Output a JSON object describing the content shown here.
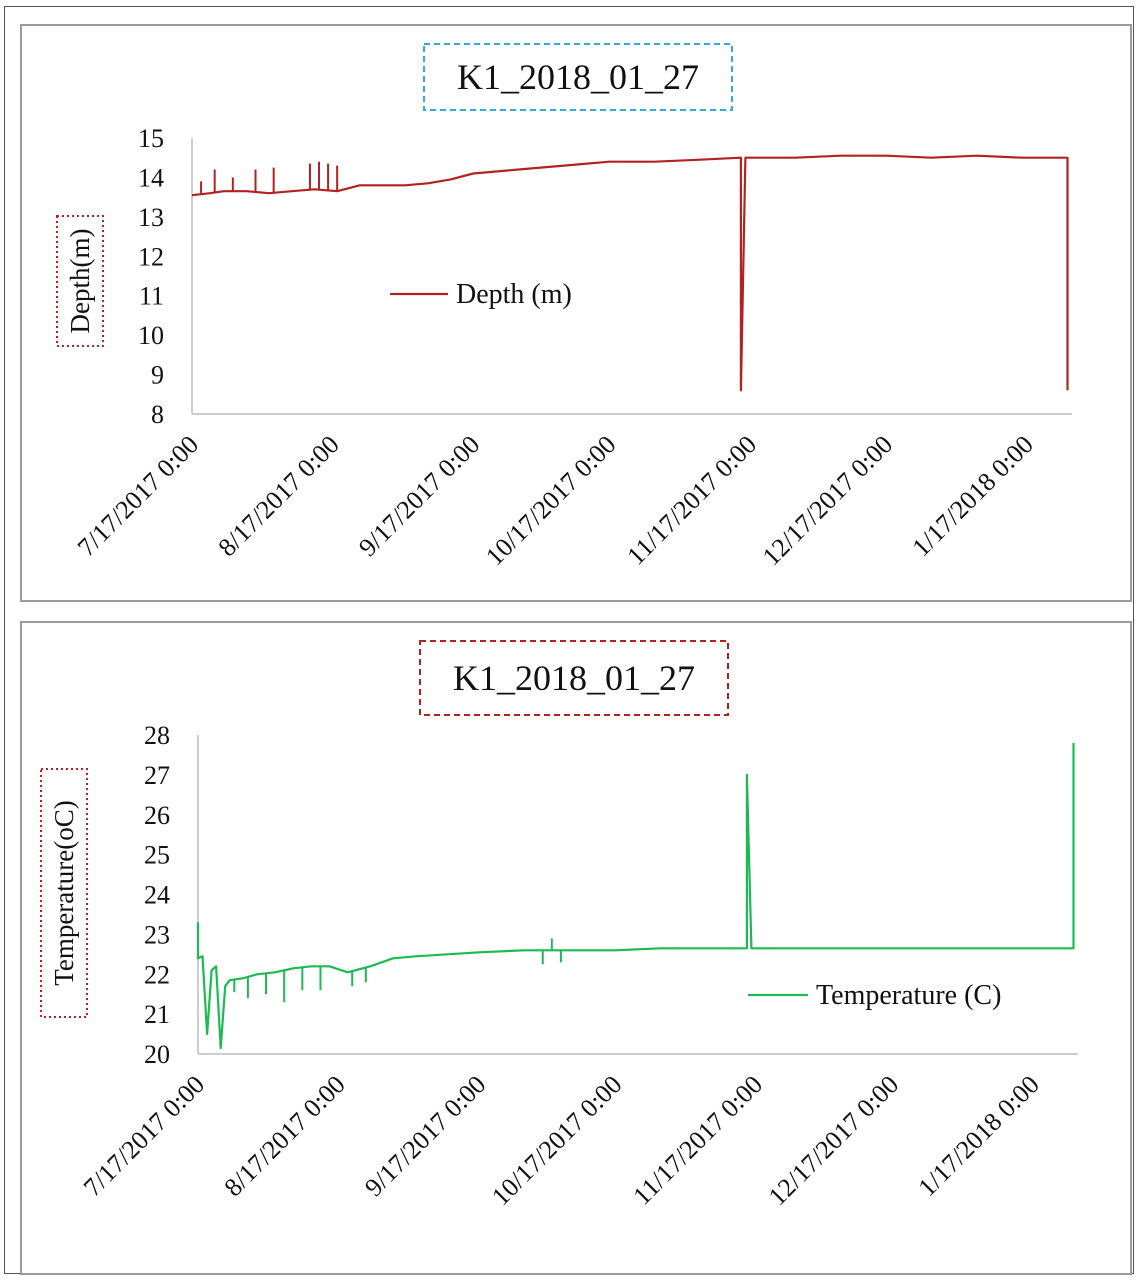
{
  "chart_data": [
    {
      "type": "line",
      "title": "K1_2018_01_27",
      "ylabel": "Depth(m)",
      "xlabel": "",
      "x_tick_labels": [
        "7/17/2017 0:00",
        "8/17/2017 0:00",
        "9/17/2017 0:00",
        "10/17/2017 0:00",
        "11/17/2017 0:00",
        "12/17/2017 0:00",
        "1/17/2018 0:00"
      ],
      "x_ticks": [
        "2017-07-17",
        "2017-08-17",
        "2017-09-17",
        "2017-10-17",
        "2017-11-17",
        "2017-12-17",
        "2018-01-17"
      ],
      "xlim": [
        "2017-07-17",
        "2018-01-27"
      ],
      "ylim": [
        8,
        15
      ],
      "y_ticks": [
        "8",
        "9",
        "10",
        "11",
        "12",
        "13",
        "14",
        "15"
      ],
      "legend": "center-left",
      "grid": false,
      "series": [
        {
          "name": "Depth (m)",
          "color": "#b22222",
          "x": [
            "2017-07-17",
            "2017-07-21",
            "2017-07-24",
            "2017-07-29",
            "2017-08-03",
            "2017-08-08",
            "2017-08-13",
            "2017-08-18",
            "2017-08-23",
            "2017-08-28",
            "2017-09-02",
            "2017-09-07",
            "2017-09-12",
            "2017-09-17",
            "2017-09-27",
            "2017-10-07",
            "2017-10-17",
            "2017-10-27",
            "2017-11-06",
            "2017-11-15",
            "2017-11-15",
            "2017-11-16",
            "2017-11-17",
            "2017-11-27",
            "2017-12-07",
            "2017-12-17",
            "2017-12-27",
            "2018-01-06",
            "2018-01-16",
            "2018-01-26",
            "2018-01-26"
          ],
          "values": [
            13.55,
            13.6,
            13.65,
            13.65,
            13.6,
            13.65,
            13.7,
            13.65,
            13.8,
            13.8,
            13.8,
            13.85,
            13.95,
            14.1,
            14.2,
            14.3,
            14.4,
            14.4,
            14.45,
            14.5,
            8.6,
            14.5,
            14.5,
            14.5,
            14.55,
            14.55,
            14.5,
            14.55,
            14.5,
            14.5,
            8.6
          ],
          "spikes": [
            {
              "x": "2017-07-19",
              "value": 13.9
            },
            {
              "x": "2017-07-22",
              "value": 14.2
            },
            {
              "x": "2017-07-26",
              "value": 14.0
            },
            {
              "x": "2017-07-31",
              "value": 14.2
            },
            {
              "x": "2017-08-04",
              "value": 14.25
            },
            {
              "x": "2017-08-12",
              "value": 14.35
            },
            {
              "x": "2017-08-14",
              "value": 14.4
            },
            {
              "x": "2017-08-16",
              "value": 14.35
            },
            {
              "x": "2017-08-18",
              "value": 14.3
            }
          ]
        }
      ]
    },
    {
      "type": "line",
      "title": "K1_2018_01_27",
      "ylabel": "Temperature(oC)",
      "xlabel": "",
      "x_tick_labels": [
        "7/17/2017 0:00",
        "8/17/2017 0:00",
        "9/17/2017 0:00",
        "10/17/2017 0:00",
        "11/17/2017 0:00",
        "12/17/2017 0:00",
        "1/17/2018 0:00"
      ],
      "x_ticks": [
        "2017-07-17",
        "2017-08-17",
        "2017-09-17",
        "2017-10-17",
        "2017-11-17",
        "2017-12-17",
        "2018-01-17"
      ],
      "xlim": [
        "2017-07-17",
        "2018-01-27"
      ],
      "ylim": [
        20,
        28
      ],
      "y_ticks": [
        "20",
        "21",
        "22",
        "23",
        "24",
        "25",
        "26",
        "27",
        "28"
      ],
      "legend": "bottom-right",
      "grid": false,
      "series": [
        {
          "name": "Temperature (C)",
          "color": "#1db954",
          "x": [
            "2017-07-17",
            "2017-07-17",
            "2017-07-18",
            "2017-07-19",
            "2017-07-20",
            "2017-07-21",
            "2017-07-22",
            "2017-07-23",
            "2017-07-24",
            "2017-07-27",
            "2017-07-30",
            "2017-08-03",
            "2017-08-07",
            "2017-08-11",
            "2017-08-15",
            "2017-08-19",
            "2017-08-24",
            "2017-08-29",
            "2017-09-03",
            "2017-09-10",
            "2017-09-17",
            "2017-09-27",
            "2017-10-07",
            "2017-10-17",
            "2017-10-27",
            "2017-11-06",
            "2017-11-15",
            "2017-11-15",
            "2017-11-16",
            "2017-11-27",
            "2017-12-07",
            "2017-12-17",
            "2017-12-27",
            "2018-01-06",
            "2018-01-16",
            "2018-01-26",
            "2018-01-26"
          ],
          "values": [
            23.3,
            22.4,
            22.45,
            20.5,
            22.1,
            22.2,
            20.15,
            21.7,
            21.85,
            21.9,
            22.0,
            22.05,
            22.15,
            22.2,
            22.2,
            22.05,
            22.2,
            22.4,
            22.45,
            22.5,
            22.55,
            22.6,
            22.6,
            22.6,
            22.65,
            22.65,
            22.65,
            27.0,
            22.65,
            22.65,
            22.65,
            22.65,
            22.65,
            22.65,
            22.65,
            22.65,
            27.8
          ],
          "spikes": [
            {
              "x": "2017-07-25",
              "value": 21.55
            },
            {
              "x": "2017-07-28",
              "value": 21.4
            },
            {
              "x": "2017-08-01",
              "value": 21.5
            },
            {
              "x": "2017-08-05",
              "value": 21.3
            },
            {
              "x": "2017-08-09",
              "value": 21.6
            },
            {
              "x": "2017-08-13",
              "value": 21.6
            },
            {
              "x": "2017-08-20",
              "value": 21.7
            },
            {
              "x": "2017-08-23",
              "value": 21.8
            },
            {
              "x": "2017-10-01",
              "value": 22.25
            },
            {
              "x": "2017-10-03",
              "value": 22.9
            },
            {
              "x": "2017-10-05",
              "value": 22.3
            }
          ]
        }
      ]
    }
  ]
}
